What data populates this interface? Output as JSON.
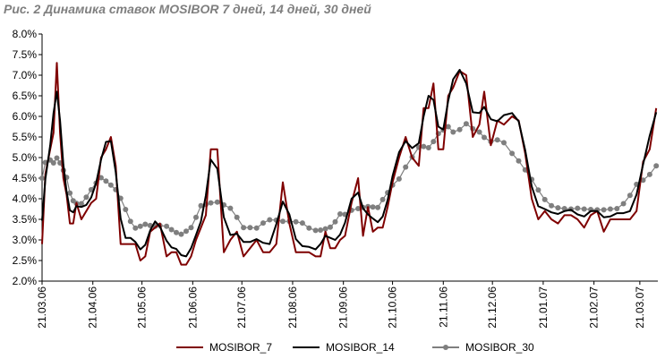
{
  "chart_data": {
    "type": "line",
    "title": "Рис. 2 Динамика ставок MOSIBOR 7 дней, 14 дней, 30 дней",
    "xlabel": "",
    "ylabel": "",
    "ylim": [
      2.0,
      8.0
    ],
    "ytick_labels": [
      "2.0%",
      "2.5%",
      "3.0%",
      "3.5%",
      "4.0%",
      "4.5%",
      "5.0%",
      "5.5%",
      "6.0%",
      "6.5%",
      "7.0%",
      "7.5%",
      "8.0%"
    ],
    "ytick_values": [
      2.0,
      2.5,
      3.0,
      3.5,
      4.0,
      4.5,
      5.0,
      5.5,
      6.0,
      6.5,
      7.0,
      7.5,
      8.0
    ],
    "xtick_labels": [
      "21.03.06",
      "21.04.06",
      "21.05.06",
      "21.06.06",
      "21.07.06",
      "21.08.06",
      "21.09.06",
      "21.10.06",
      "21.11.06",
      "21.12.06",
      "21.01.07",
      "21.02.07",
      "21.03.07"
    ],
    "x_start": "2006-03-21",
    "x_end": "2007-04-01",
    "grid": false,
    "legend": "bottom",
    "series": [
      {
        "name": "MOSIBOR_7",
        "color": "#7f0000",
        "marker": "none",
        "x": [
          "2006-03-21",
          "2006-03-23",
          "2006-03-26",
          "2006-03-28",
          "2006-03-30",
          "2006-04-01",
          "2006-04-03",
          "2006-04-05",
          "2006-04-07",
          "2006-04-09",
          "2006-04-11",
          "2006-04-14",
          "2006-04-17",
          "2006-04-20",
          "2006-04-23",
          "2006-04-26",
          "2006-04-29",
          "2006-05-02",
          "2006-05-05",
          "2006-05-08",
          "2006-05-11",
          "2006-05-14",
          "2006-05-17",
          "2006-05-20",
          "2006-05-23",
          "2006-05-26",
          "2006-05-29",
          "2006-06-01",
          "2006-06-05",
          "2006-06-08",
          "2006-06-11",
          "2006-06-14",
          "2006-06-17",
          "2006-06-20",
          "2006-06-23",
          "2006-06-26",
          "2006-06-29",
          "2006-07-02",
          "2006-07-06",
          "2006-07-10",
          "2006-07-14",
          "2006-07-18",
          "2006-07-22",
          "2006-07-26",
          "2006-07-30",
          "2006-08-03",
          "2006-08-07",
          "2006-08-11",
          "2006-08-15",
          "2006-08-19",
          "2006-08-23",
          "2006-08-27",
          "2006-08-31",
          "2006-09-04",
          "2006-09-07",
          "2006-09-10",
          "2006-09-13",
          "2006-09-16",
          "2006-09-19",
          "2006-09-22",
          "2006-09-26",
          "2006-09-30",
          "2006-10-03",
          "2006-10-06",
          "2006-10-09",
          "2006-10-12",
          "2006-10-15",
          "2006-10-18",
          "2006-10-21",
          "2006-10-25",
          "2006-10-29",
          "2006-11-02",
          "2006-11-06",
          "2006-11-09",
          "2006-11-12",
          "2006-11-15",
          "2006-11-18",
          "2006-11-21",
          "2006-11-24",
          "2006-11-27",
          "2006-12-01",
          "2006-12-05",
          "2006-12-09",
          "2006-12-13",
          "2006-12-16",
          "2006-12-20",
          "2006-12-24",
          "2006-12-28",
          "2007-01-02",
          "2007-01-06",
          "2007-01-10",
          "2007-01-14",
          "2007-01-18",
          "2007-01-22",
          "2007-01-26",
          "2007-01-30",
          "2007-02-03",
          "2007-02-07",
          "2007-02-11",
          "2007-02-15",
          "2007-02-19",
          "2007-02-23",
          "2007-02-27",
          "2007-03-03",
          "2007-03-07",
          "2007-03-11",
          "2007-03-15",
          "2007-03-19",
          "2007-03-23",
          "2007-03-27",
          "2007-03-31"
        ],
        "values": [
          2.9,
          4.6,
          5.2,
          5.6,
          7.3,
          5.6,
          4.5,
          4.1,
          3.4,
          3.4,
          3.9,
          3.5,
          3.7,
          3.9,
          4.0,
          5.0,
          5.2,
          5.5,
          4.8,
          2.9,
          2.9,
          2.9,
          2.9,
          2.5,
          2.6,
          3.2,
          3.3,
          3.4,
          2.6,
          2.7,
          2.7,
          2.4,
          2.4,
          2.6,
          3.0,
          3.3,
          3.6,
          5.2,
          5.2,
          2.7,
          3.0,
          3.2,
          2.6,
          2.8,
          3.0,
          2.7,
          2.7,
          2.9,
          4.4,
          3.4,
          2.7,
          2.7,
          2.7,
          2.6,
          2.6,
          3.2,
          2.8,
          2.8,
          3.0,
          3.1,
          3.9,
          4.5,
          3.1,
          3.8,
          3.2,
          3.3,
          3.3,
          3.8,
          4.4,
          5.0,
          5.5,
          5.0,
          4.8,
          6.2,
          6.2,
          6.8,
          5.2,
          5.2,
          6.5,
          6.7,
          7.1,
          7.0,
          5.5,
          5.8,
          6.6,
          5.3,
          5.9,
          5.8,
          6.0,
          5.9,
          5.1,
          4.0,
          3.5,
          3.7,
          3.5,
          3.4,
          3.6,
          3.6,
          3.5,
          3.3,
          3.6,
          3.7,
          3.2,
          3.5,
          3.5,
          3.5,
          3.5,
          3.7,
          4.9,
          5.2,
          6.2
        ],
        "y_tail_note": ""
      },
      {
        "name": "MOSIBOR_14",
        "color": "#000000",
        "marker": "none",
        "x": [],
        "values": []
      },
      {
        "name": "MOSIBOR_30",
        "color": "#7f7f7f",
        "marker": "circle",
        "x": [],
        "values": []
      }
    ]
  }
}
